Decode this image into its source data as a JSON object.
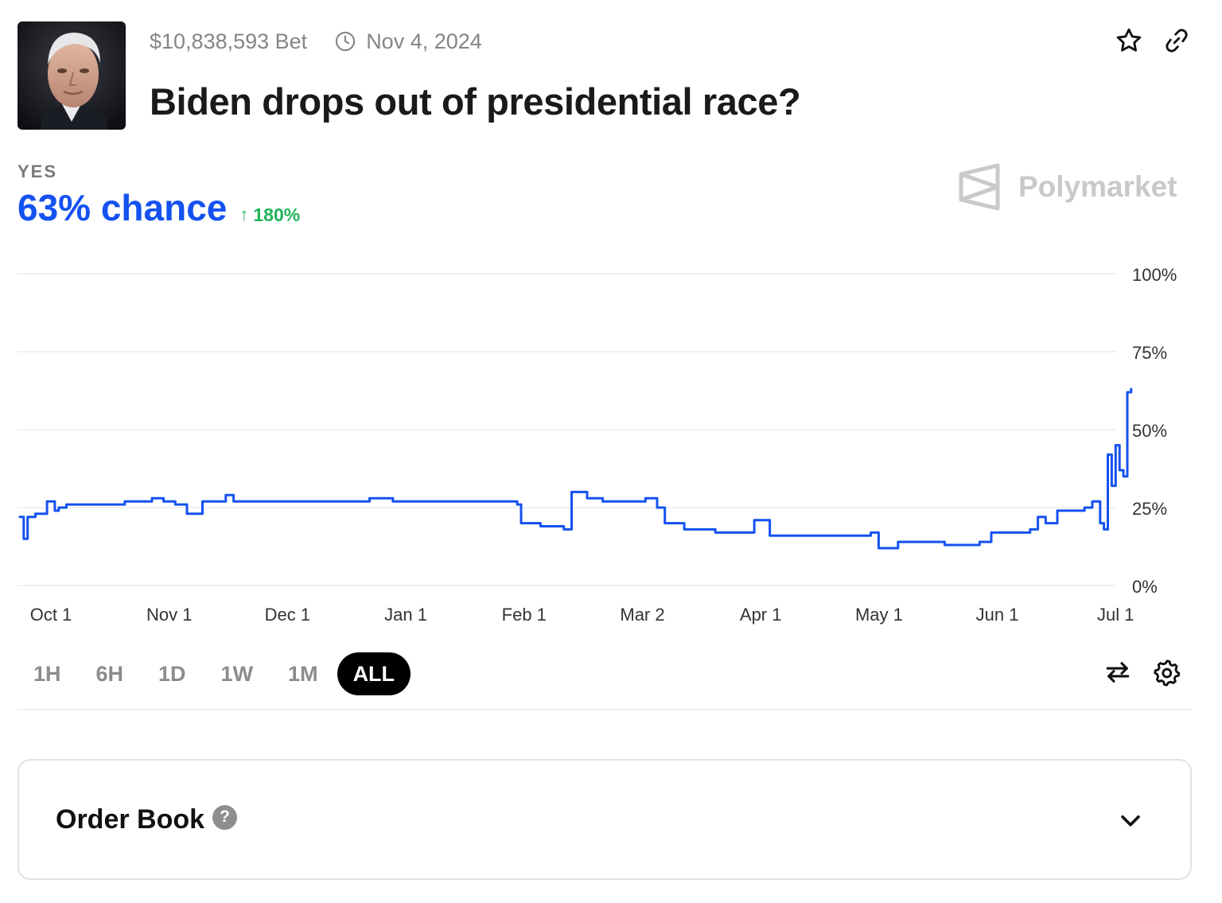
{
  "market": {
    "volume": "$10,838,593 Bet",
    "end_date": "Nov 4, 2024",
    "title": "Biden drops out of presidential race?",
    "outcome_label": "YES",
    "chance": "63% chance",
    "change": "180%",
    "brand": "Polymarket"
  },
  "timeframes": [
    "1H",
    "6H",
    "1D",
    "1W",
    "1M",
    "ALL"
  ],
  "active_timeframe": "ALL",
  "order_book": {
    "title": "Order Book",
    "help": "?"
  },
  "icons": {
    "favorite": "star-icon",
    "copy_link": "link-icon",
    "clock": "clock-icon",
    "swap": "swap-arrows-icon",
    "settings": "gear-icon",
    "expand": "chevron-down-icon",
    "change_arrow": "arrow-up-icon"
  },
  "colors": {
    "line": "#1452f0",
    "positive": "#21b35a",
    "active_tab": "#000000"
  },
  "chart_data": {
    "type": "line",
    "title": "",
    "xlabel": "",
    "ylabel": "",
    "ylim": [
      0,
      100
    ],
    "yticks": [
      "100%",
      "75%",
      "50%",
      "25%",
      "0%"
    ],
    "ytick_values": [
      100,
      75,
      50,
      25,
      0
    ],
    "xticks": [
      "Oct 1",
      "Nov 1",
      "Dec 1",
      "Jan 1",
      "Feb 1",
      "Mar 2",
      "Apr 1",
      "May 1",
      "Jun 1",
      "Jul 1"
    ],
    "grid": true,
    "series": [
      {
        "x": [
          "2023-09-23",
          "2023-09-24",
          "2023-09-25",
          "2023-09-27",
          "2023-09-30",
          "2023-10-02",
          "2023-10-03",
          "2023-10-05",
          "2023-10-09",
          "2023-10-15",
          "2023-10-20",
          "2023-10-27",
          "2023-10-30",
          "2023-11-02",
          "2023-11-05",
          "2023-11-09",
          "2023-11-12",
          "2023-11-15",
          "2023-11-17",
          "2023-11-22",
          "2023-11-26",
          "2023-12-01",
          "2023-12-06",
          "2023-12-12",
          "2023-12-17",
          "2023-12-22",
          "2023-12-28",
          "2024-01-03",
          "2024-01-10",
          "2024-01-17",
          "2024-01-24",
          "2024-01-29",
          "2024-01-30",
          "2024-02-04",
          "2024-02-09",
          "2024-02-10",
          "2024-02-12",
          "2024-02-16",
          "2024-02-20",
          "2024-02-23",
          "2024-02-27",
          "2024-03-02",
          "2024-03-05",
          "2024-03-07",
          "2024-03-12",
          "2024-03-20",
          "2024-03-26",
          "2024-03-28",
          "2024-03-30",
          "2024-04-03",
          "2024-04-08",
          "2024-04-15",
          "2024-04-22",
          "2024-04-29",
          "2024-05-01",
          "2024-05-06",
          "2024-05-12",
          "2024-05-18",
          "2024-05-24",
          "2024-05-27",
          "2024-05-30",
          "2024-06-04",
          "2024-06-09",
          "2024-06-11",
          "2024-06-13",
          "2024-06-16",
          "2024-06-20",
          "2024-06-23",
          "2024-06-25",
          "2024-06-27",
          "2024-06-28",
          "2024-06-29",
          "2024-06-30",
          "2024-07-01",
          "2024-07-02",
          "2024-07-03",
          "2024-07-04",
          "2024-07-05"
        ],
        "values": [
          22,
          15,
          22,
          23,
          27,
          24,
          25,
          26,
          26,
          26,
          27,
          28,
          27,
          26,
          23,
          27,
          27,
          29,
          27,
          27,
          27,
          27,
          27,
          27,
          27,
          28,
          27,
          27,
          27,
          27,
          27,
          26,
          20,
          19,
          19,
          18,
          30,
          28,
          27,
          27,
          27,
          28,
          25,
          20,
          18,
          17,
          17,
          17,
          21,
          16,
          16,
          16,
          16,
          17,
          12,
          14,
          14,
          13,
          13,
          14,
          17,
          17,
          18,
          22,
          20,
          24,
          24,
          25,
          27,
          20,
          18,
          42,
          32,
          45,
          37,
          35,
          62,
          63
        ]
      }
    ]
  }
}
